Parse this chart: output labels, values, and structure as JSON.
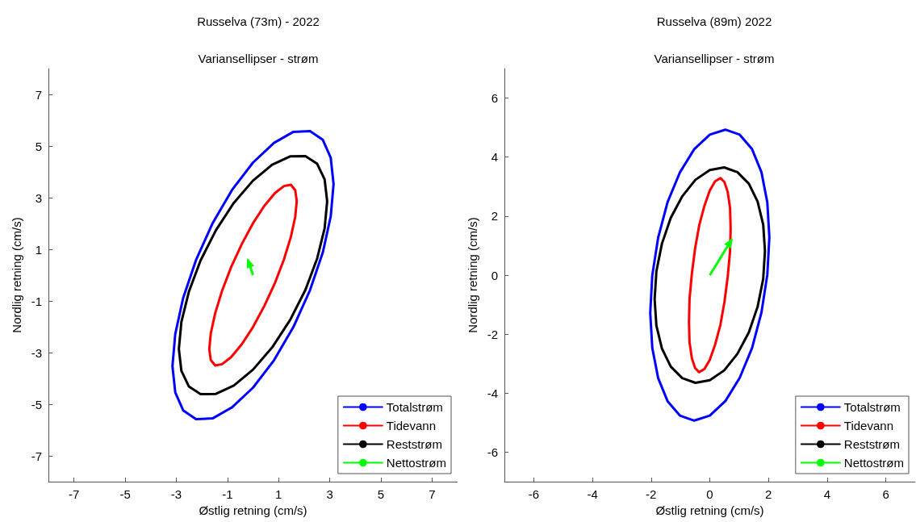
{
  "chart_data": [
    {
      "type": "line",
      "title": "Russelva (73m) - 2022",
      "subtitle": "Variansellipser - strøm",
      "xlabel": "Østlig retning (cm/s)",
      "ylabel": "Nordlig retning (cm/s)",
      "xlim": [
        -8,
        8
      ],
      "ylim": [
        -8,
        8
      ],
      "xticks": [
        -7,
        -5,
        -3,
        -1,
        1,
        3,
        5,
        7
      ],
      "yticks": [
        -7,
        -5,
        -3,
        -1,
        1,
        3,
        5,
        7
      ],
      "legend": "bottom right",
      "marker": "none",
      "line_style": "solid",
      "series": [
        {
          "name": "Totalstrøm",
          "color": "#0000ff",
          "x": [
            3.15,
            3.04,
            2.73,
            2.23,
            1.58,
            0.82,
            0,
            -0.82,
            -1.58,
            -2.23,
            -2.73,
            -3.04,
            -3.15,
            -3.04,
            -2.73,
            -2.23,
            -1.58,
            -0.82,
            0,
            0.82,
            1.58,
            2.23,
            2.73,
            3.04,
            3.15
          ],
          "values": [
            3.53,
            4.54,
            5.24,
            5.58,
            5.55,
            5.12,
            4.36,
            3.3,
            2.01,
            0.58,
            -0.88,
            -2.28,
            -3.53,
            -4.54,
            -5.24,
            -5.58,
            -5.55,
            -5.12,
            -4.36,
            -3.3,
            -2.01,
            -0.58,
            0.88,
            2.28,
            3.53
          ]
        },
        {
          "name": "Tidevann",
          "color": "#ff0000",
          "x": [
            1.71,
            1.65,
            1.48,
            1.21,
            0.86,
            0.44,
            0,
            -0.44,
            -0.86,
            -1.21,
            -1.48,
            -1.65,
            -1.71,
            -1.65,
            -1.48,
            -1.21,
            -0.86,
            -0.44,
            0,
            0.44,
            0.86,
            1.21,
            1.48,
            1.65,
            1.71
          ],
          "values": [
            2.87,
            3.29,
            3.5,
            3.45,
            3.18,
            2.68,
            2.01,
            1.2,
            0.3,
            -0.61,
            -1.48,
            -2.25,
            -2.87,
            -3.29,
            -3.5,
            -3.45,
            -3.18,
            -2.68,
            -2.01,
            -1.2,
            -0.3,
            0.61,
            1.48,
            2.25,
            2.87
          ]
        },
        {
          "name": "Reststrøm",
          "color": "#000000",
          "x": [
            2.9,
            2.8,
            2.51,
            2.05,
            1.45,
            0.75,
            0,
            -0.75,
            -1.45,
            -2.05,
            -2.51,
            -2.8,
            -2.9,
            -2.8,
            -2.51,
            -2.05,
            -1.45,
            -0.75,
            0,
            0.75,
            1.45,
            2.05,
            2.51,
            2.8,
            2.9
          ],
          "values": [
            2.86,
            3.71,
            4.31,
            4.61,
            4.6,
            4.28,
            3.66,
            2.8,
            1.74,
            0.57,
            -0.65,
            -1.81,
            -2.86,
            -3.71,
            -4.31,
            -4.61,
            -4.6,
            -4.28,
            -3.66,
            -2.8,
            -1.74,
            -0.57,
            0.65,
            1.81,
            2.86
          ]
        },
        {
          "name": "Nettostrøm",
          "color": "#00ff00",
          "x": [
            0,
            -0.2
          ],
          "values": [
            0,
            0.6
          ]
        }
      ]
    },
    {
      "type": "line",
      "title": "Russelva (89m) 2022",
      "subtitle": "Variansellipser - strøm",
      "xlabel": "Østlig retning (cm/s)",
      "ylabel": "Nordlig retning (cm/s)",
      "xlim": [
        -7,
        7
      ],
      "ylim": [
        -7,
        7
      ],
      "xticks": [
        -6,
        -4,
        -2,
        0,
        2,
        4,
        6
      ],
      "yticks": [
        -6,
        -4,
        -2,
        0,
        2,
        4,
        6
      ],
      "legend": "bottom right",
      "marker": "none",
      "line_style": "solid",
      "series": [
        {
          "name": "Totalstrøm",
          "color": "#0000ff",
          "x": [
            2.03,
            1.96,
            1.76,
            1.44,
            1.02,
            0.53,
            0,
            -0.53,
            -1.02,
            -1.44,
            -1.76,
            -1.96,
            -2.03,
            -1.96,
            -1.76,
            -1.44,
            -1.02,
            -0.53,
            0,
            0.53,
            1.02,
            1.44,
            1.76,
            1.96
          ],
          "values": [
            1.28,
            2.47,
            3.49,
            4.27,
            4.76,
            4.93,
            4.76,
            4.27,
            3.48,
            2.47,
            1.27,
            -0.01,
            -1.28,
            -2.47,
            -3.49,
            -4.27,
            -4.76,
            -4.93,
            -4.76,
            -4.27,
            -3.48,
            -2.47,
            -1.27,
            0.01
          ]
        },
        {
          "name": "Tidevann",
          "color": "#ff0000",
          "x": [
            0.71,
            0.69,
            0.61,
            0.5,
            0.36,
            0.18,
            0,
            -0.18,
            -0.36,
            -0.5,
            -0.61,
            -0.69,
            -0.71,
            -0.69,
            -0.61,
            -0.5,
            -0.36,
            -0.18,
            0,
            0.18,
            0.36,
            0.5,
            0.61,
            0.69,
            0.71
          ],
          "values": [
            1.59,
            2.28,
            2.82,
            3.15,
            3.29,
            3.18,
            2.87,
            2.36,
            1.69,
            0.91,
            0.06,
            -0.8,
            -1.59,
            -2.28,
            -2.82,
            -3.15,
            -3.29,
            -3.18,
            -2.87,
            -2.36,
            -1.69,
            -0.91,
            -0.06,
            0.8,
            1.59
          ]
        },
        {
          "name": "Reststrøm",
          "color": "#000000",
          "x": [
            1.88,
            1.82,
            1.63,
            1.33,
            0.94,
            0.49,
            0,
            -0.49,
            -0.94,
            -1.33,
            -1.63,
            -1.82,
            -1.88,
            -1.82,
            -1.63,
            -1.33,
            -0.94,
            -0.49,
            0,
            0.49,
            0.94,
            1.33,
            1.63,
            1.82,
            1.88
          ],
          "values": [
            0.82,
            1.71,
            2.49,
            3.1,
            3.49,
            3.65,
            3.56,
            3.23,
            2.67,
            1.94,
            1.07,
            0.13,
            -0.82,
            -1.71,
            -2.49,
            -3.1,
            -3.49,
            -3.65,
            -3.56,
            -3.23,
            -2.67,
            -1.94,
            -1.07,
            -0.13,
            0.82
          ]
        },
        {
          "name": "Nettostrøm",
          "color": "#00ff00",
          "x": [
            0,
            0.75
          ],
          "values": [
            0,
            1.21
          ]
        }
      ]
    }
  ]
}
